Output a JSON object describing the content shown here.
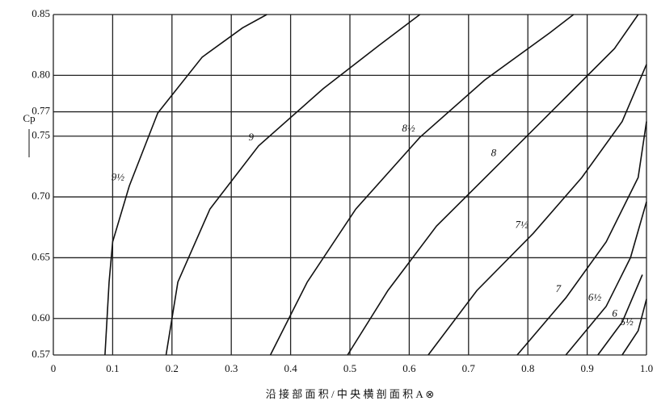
{
  "chart_data": {
    "type": "line",
    "x_label": "沿 接 部 面 积 / 中 央 横 剖 面 积 A ⊗",
    "y_label": "Cp",
    "xlim": [
      0,
      1
    ],
    "ylim": [
      0.57,
      0.85
    ],
    "xticks": [
      0,
      0.1,
      0.2,
      0.3,
      0.4,
      0.5,
      0.6,
      0.7,
      0.8,
      0.9,
      {
        "value": 1,
        "label": "1.0"
      }
    ],
    "yticks": [
      0.57,
      {
        "value": 0.6,
        "label": "0.60"
      },
      0.65,
      {
        "value": 0.7,
        "label": "0.70"
      },
      0.75,
      0.77,
      {
        "value": 0.8,
        "label": "0.80"
      },
      0.85
    ],
    "grid": true,
    "color": "#111111",
    "series": [
      {
        "name": "9½",
        "x": [
          0.087,
          0.094,
          0.1,
          0.128,
          0.176,
          0.251,
          0.319,
          0.36
        ],
        "values": [
          0.57,
          0.63,
          0.663,
          0.709,
          0.769,
          0.815,
          0.839,
          0.85
        ]
      },
      {
        "name": "9",
        "x": [
          0.19,
          0.21,
          0.264,
          0.346,
          0.455,
          0.55,
          0.618
        ],
        "values": [
          0.57,
          0.63,
          0.69,
          0.742,
          0.789,
          0.825,
          0.85
        ]
      },
      {
        "name": "8½",
        "x": [
          0.366,
          0.428,
          0.51,
          0.618,
          0.727,
          0.837,
          0.877
        ],
        "values": [
          0.57,
          0.63,
          0.69,
          0.749,
          0.796,
          0.835,
          0.85
        ]
      },
      {
        "name": "8",
        "x": [
          0.496,
          0.564,
          0.646,
          0.755,
          0.864,
          0.946,
          0.986
        ],
        "values": [
          0.57,
          0.623,
          0.676,
          0.729,
          0.782,
          0.822,
          0.85
        ]
      },
      {
        "name": "7½",
        "x": [
          0.632,
          0.714,
          0.809,
          0.891,
          0.959,
          1
        ],
        "values": [
          0.57,
          0.623,
          0.67,
          0.716,
          0.762,
          0.809
        ]
      },
      {
        "name": "7",
        "x": [
          0.782,
          0.864,
          0.932,
          0.986,
          1
        ],
        "values": [
          0.57,
          0.617,
          0.663,
          0.716,
          0.762
        ]
      },
      {
        "name": "6½",
        "x": [
          0.864,
          0.932,
          0.973,
          1
        ],
        "values": [
          0.57,
          0.61,
          0.65,
          0.696
        ]
      },
      {
        "name": "6",
        "x": [
          0.918,
          0.959,
          0.993
        ],
        "values": [
          0.57,
          0.597,
          0.636
        ]
      },
      {
        "name": "5½",
        "x": [
          0.959,
          0.986,
          1
        ],
        "values": [
          0.57,
          0.59,
          0.616
        ]
      }
    ]
  }
}
